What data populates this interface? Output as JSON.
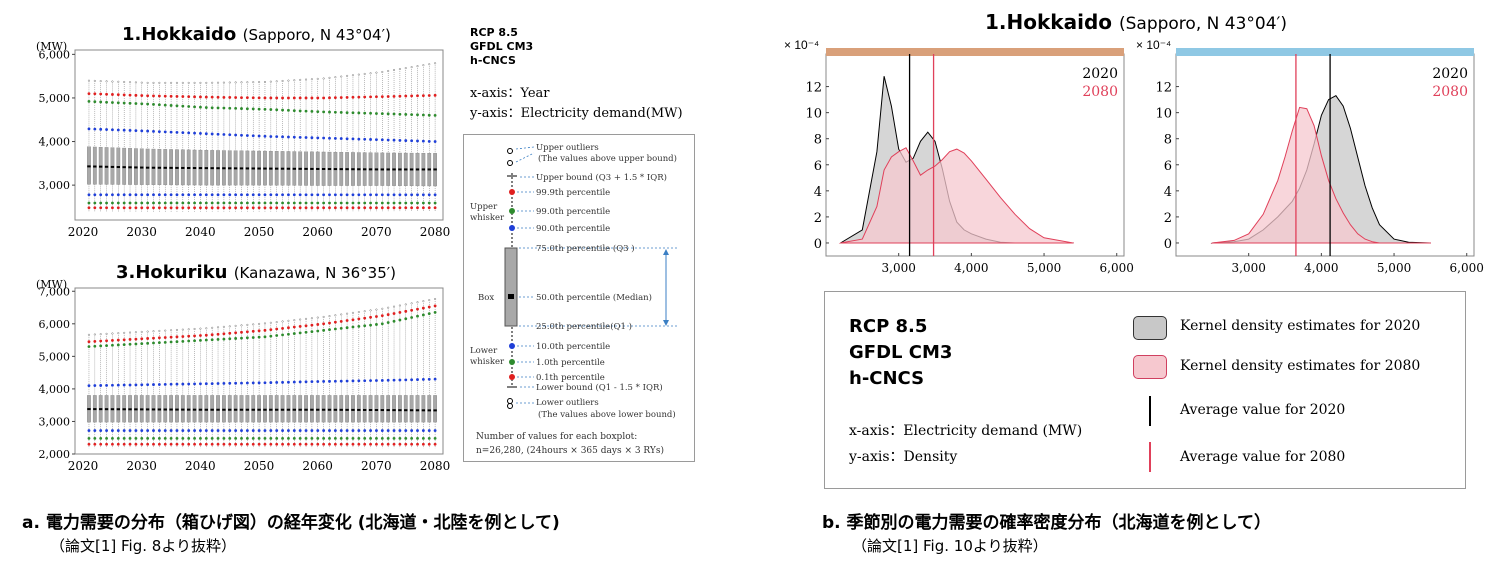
{
  "panel_a": {
    "hokkaido_title": "1.Hokkaido",
    "hokkaido_sub": "(Sapporo, N 43°04′)",
    "hokuriku_title": "3.Hokuriku",
    "hokuriku_sub": "(Kanazawa, N 36°35′)",
    "y_unit": "(MW)",
    "meta": [
      "RCP 8.5",
      "GFDL CM3",
      "h-CNCS"
    ],
    "x_axis_desc": "x-axis：Year",
    "y_axis_desc": "y-axis：Electricity demand(MW)",
    "legend": {
      "upper_outliers": "Upper outliers",
      "upper_outliers_note": "(The values above upper bound)",
      "upper_bound": "Upper bound (Q3 + 1.5 * IQR)",
      "p999": "99.9th percentile",
      "p99": "99.0th percentile",
      "p90": "90.0th percentile",
      "upper_whisker": "Upper whisker",
      "q3": "75.0th percentile (Q3 )",
      "box": "Box",
      "median": "50.0th percentile (Median)",
      "q1": "25.0th percentile(Q1 )",
      "p10": "10.0th percentile",
      "p1": "1.0th percentile",
      "p01": "0.1th percentile",
      "lower_whisker": "Lower whisker",
      "lower_bound": "Lower bound (Q1 - 1.5 * IQR)",
      "lower_outliers": "Lower outliers",
      "lower_outliers_note": "(The values above lower bound)",
      "count_label": "Number of values for each boxplot:",
      "count_value": "n=26,280,  (24hours × 365 days × 3  RYs)"
    },
    "caption": "a. 電力需要の分布（箱ひげ図）の経年変化 (北海道・北陸を例として)",
    "source": "（論文[1] Fig. 8より抜粋）"
  },
  "panel_b": {
    "title": "1.Hokkaido",
    "sub": "(Sapporo, N 43°04′)",
    "exponent": "× 10⁻⁴",
    "year_2020": "2020",
    "year_2080": "2080",
    "meta": [
      "RCP 8.5",
      "GFDL CM3",
      "h-CNCS"
    ],
    "x_axis_desc": "x-axis：Electricity demand (MW)",
    "y_axis_desc": "y-axis：Density",
    "legend": {
      "kde2020": "Kernel density estimates for 2020",
      "kde2080": "Kernel density estimates for 2080",
      "avg2020": "Average value for 2020",
      "avg2080": "Average value for 2080"
    },
    "caption": "b. 季節別の電力需要の確率密度分布（北海道を例として）",
    "source": "（論文[1] Fig. 10より抜粋）"
  },
  "colors": {
    "p999": "#e02020",
    "p99": "#2e8b2e",
    "p90": "#1f3fd8",
    "box": "#a8a8a8",
    "kde2020": "#c8c8c8",
    "kde2080": "#f6c8cf",
    "avg2020": "#000000",
    "avg2080": "#e0405a",
    "strip_left": "#d9a07a",
    "strip_right": "#8fc8e4"
  },
  "chart_data": [
    {
      "type": "box",
      "title": "1.Hokkaido (Sapporo, N 43°04′)",
      "ylabel": "(MW)",
      "x_ticks": [
        2020,
        2030,
        2040,
        2050,
        2060,
        2070,
        2080
      ],
      "y_ticks": [
        3000,
        4000,
        5000,
        6000
      ],
      "ylim": [
        2200,
        6100
      ],
      "x": [
        2021,
        2031,
        2041,
        2051,
        2061,
        2071,
        2080
      ],
      "median": [
        3430,
        3400,
        3390,
        3380,
        3370,
        3360,
        3360
      ],
      "q1": [
        3020,
        3010,
        3000,
        3000,
        2990,
        2990,
        2980
      ],
      "q3": [
        3880,
        3830,
        3800,
        3780,
        3760,
        3740,
        3730
      ],
      "p90": [
        4290,
        4240,
        4180,
        4120,
        4080,
        4040,
        4000
      ],
      "p99": [
        4920,
        4860,
        4780,
        4740,
        4680,
        4640,
        4600
      ],
      "p999": [
        5100,
        5050,
        5020,
        5000,
        5000,
        5030,
        5060
      ],
      "p10": [
        2780,
        2780,
        2780,
        2780,
        2780,
        2780,
        2780
      ],
      "p1": [
        2590,
        2590,
        2590,
        2590,
        2590,
        2590,
        2590
      ],
      "p01": [
        2480,
        2480,
        2480,
        2480,
        2480,
        2480,
        2480
      ],
      "upper_bound": [
        5350,
        5300,
        5300,
        5320,
        5400,
        5550,
        5750
      ]
    },
    {
      "type": "box",
      "title": "3.Hokuriku (Kanazawa, N 36°35′)",
      "ylabel": "(MW)",
      "x_ticks": [
        2020,
        2030,
        2040,
        2050,
        2060,
        2070,
        2080
      ],
      "y_ticks": [
        2000,
        3000,
        4000,
        5000,
        6000,
        7000
      ],
      "ylim": [
        2000,
        7100
      ],
      "x": [
        2021,
        2031,
        2041,
        2051,
        2061,
        2071,
        2080
      ],
      "median": [
        3380,
        3370,
        3360,
        3360,
        3360,
        3350,
        3340
      ],
      "q1": [
        2980,
        2980,
        2980,
        2980,
        2980,
        2980,
        2980
      ],
      "q3": [
        3800,
        3800,
        3800,
        3800,
        3800,
        3800,
        3800
      ],
      "p90": [
        4100,
        4130,
        4160,
        4190,
        4230,
        4260,
        4300
      ],
      "p99": [
        5300,
        5400,
        5500,
        5600,
        5800,
        6000,
        6350
      ],
      "p999": [
        5450,
        5550,
        5650,
        5800,
        6000,
        6250,
        6550
      ],
      "p10": [
        2720,
        2720,
        2720,
        2720,
        2720,
        2720,
        2720
      ],
      "p1": [
        2480,
        2480,
        2480,
        2480,
        2480,
        2480,
        2480
      ],
      "p01": [
        2300,
        2300,
        2300,
        2300,
        2300,
        2300,
        2300
      ],
      "upper_bound": [
        5600,
        5700,
        5800,
        5950,
        6150,
        6400,
        6700
      ]
    },
    {
      "type": "area",
      "title": "1.Hokkaido (Sapporo, N 43°04′)",
      "xlabel": "Electricity demand (MW)",
      "ylabel": "Density",
      "y_scale": "× 10⁻⁴",
      "x_ticks": [
        3000,
        4000,
        5000,
        6000
      ],
      "y_ticks": [
        0,
        2,
        4,
        6,
        8,
        10,
        12
      ],
      "xlim": [
        2000,
        6100
      ],
      "ylim": [
        -1,
        14.5
      ],
      "x": [
        2200,
        2500,
        2700,
        2800,
        2900,
        3000,
        3100,
        3200,
        3300,
        3400,
        3500,
        3600,
        3700,
        3800,
        3900,
        4000,
        4200,
        4400,
        4600,
        4800,
        5000,
        5200,
        5400
      ],
      "series": [
        {
          "name": "2020",
          "values": [
            0,
            1.0,
            7.0,
            12.8,
            10.5,
            7.2,
            6.2,
            6.5,
            7.8,
            8.5,
            7.8,
            5.7,
            3.2,
            1.6,
            1.0,
            0.7,
            0.3,
            0.05,
            0,
            0,
            0,
            0,
            0
          ]
        },
        {
          "name": "2080",
          "values": [
            0,
            0.3,
            2.8,
            5.6,
            6.6,
            7.0,
            7.3,
            6.3,
            5.2,
            5.6,
            5.9,
            6.4,
            7.0,
            7.2,
            6.9,
            6.3,
            4.9,
            3.5,
            2.2,
            1.1,
            0.4,
            0.2,
            0
          ]
        }
      ],
      "averages": {
        "2020": 3150,
        "2080": 3480
      }
    },
    {
      "type": "area",
      "title": "1.Hokkaido (Sapporo, N 43°04′)",
      "xlabel": "Electricity demand (MW)",
      "ylabel": "Density",
      "y_scale": "× 10⁻⁴",
      "x_ticks": [
        3000,
        4000,
        5000,
        6000
      ],
      "y_ticks": [
        0,
        2,
        4,
        6,
        8,
        10,
        12
      ],
      "xlim": [
        2000,
        6100
      ],
      "ylim": [
        -1,
        14.5
      ],
      "x": [
        2500,
        2800,
        3000,
        3200,
        3400,
        3500,
        3600,
        3700,
        3800,
        3900,
        4000,
        4100,
        4200,
        4300,
        4400,
        4500,
        4600,
        4700,
        4800,
        5000,
        5200,
        5500
      ],
      "series": [
        {
          "name": "2020",
          "values": [
            0,
            0.1,
            0.3,
            1.0,
            2.0,
            2.6,
            3.2,
            4.2,
            5.6,
            7.6,
            9.8,
            11.0,
            11.3,
            10.5,
            8.8,
            6.6,
            4.4,
            2.7,
            1.4,
            0.3,
            0.05,
            0
          ]
        },
        {
          "name": "2080",
          "values": [
            0,
            0.2,
            0.7,
            2.2,
            4.8,
            6.6,
            8.6,
            10.4,
            10.3,
            9.0,
            6.7,
            4.8,
            3.4,
            2.3,
            1.4,
            0.7,
            0.3,
            0.1,
            0,
            0,
            0,
            0
          ]
        }
      ],
      "averages": {
        "2020": 4120,
        "2080": 3650
      }
    }
  ]
}
